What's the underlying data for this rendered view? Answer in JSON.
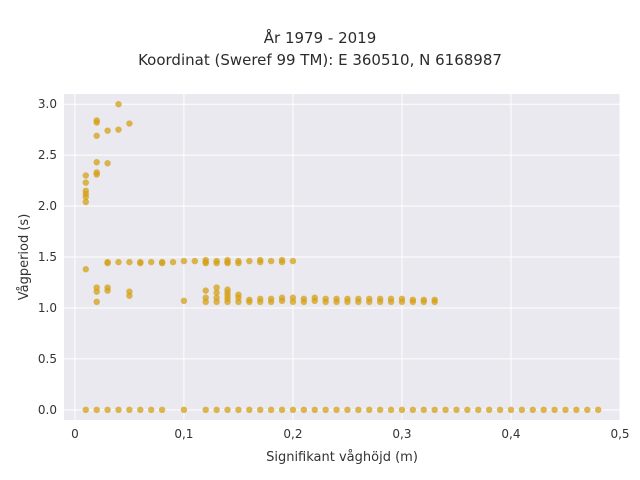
{
  "chart_data": {
    "type": "scatter",
    "title": "År 1979 - 2019",
    "subtitle": "Koordinat (Sweref 99 TM): E 360510, N 6168987",
    "xlabel": "Signifikant våghöjd (m)",
    "ylabel": "Vågperiod (s)",
    "xlim": [
      -0.01,
      0.5
    ],
    "ylim": [
      -0.1,
      3.1
    ],
    "x_ticks": [
      "0",
      "0,1",
      "0,2",
      "0,3",
      "0,4",
      "0,5"
    ],
    "y_ticks": [
      "0.0",
      "0.5",
      "1.0",
      "1.5",
      "2.0",
      "2.5",
      "3.0"
    ],
    "grid": true,
    "colors": {
      "marker": "#D4A017",
      "plot_bg": "#E9E9EF",
      "grid": "#ffffff"
    },
    "series": [
      {
        "points": [
          [
            0.01,
            2.3
          ],
          [
            0.01,
            2.23
          ],
          [
            0.01,
            2.15
          ],
          [
            0.01,
            2.12
          ],
          [
            0.01,
            2.09
          ],
          [
            0.01,
            2.04
          ],
          [
            0.01,
            1.38
          ],
          [
            0.02,
            2.84
          ],
          [
            0.02,
            2.82
          ],
          [
            0.02,
            2.69
          ],
          [
            0.02,
            2.43
          ],
          [
            0.02,
            2.33
          ],
          [
            0.02,
            2.31
          ],
          [
            0.02,
            1.2
          ],
          [
            0.02,
            1.16
          ],
          [
            0.02,
            1.06
          ],
          [
            0.03,
            2.74
          ],
          [
            0.03,
            2.42
          ],
          [
            0.03,
            1.45
          ],
          [
            0.03,
            1.44
          ],
          [
            0.03,
            1.2
          ],
          [
            0.03,
            1.17
          ],
          [
            0.04,
            3.0
          ],
          [
            0.04,
            2.75
          ],
          [
            0.04,
            1.45
          ],
          [
            0.05,
            2.81
          ],
          [
            0.05,
            1.45
          ],
          [
            0.05,
            1.16
          ],
          [
            0.05,
            1.12
          ],
          [
            0.06,
            1.45
          ],
          [
            0.06,
            1.44
          ],
          [
            0.07,
            1.45
          ],
          [
            0.08,
            1.45
          ],
          [
            0.08,
            1.44
          ],
          [
            0.09,
            1.45
          ],
          [
            0.1,
            1.46
          ],
          [
            0.1,
            1.07
          ],
          [
            0.11,
            1.46
          ],
          [
            0.12,
            1.47
          ],
          [
            0.12,
            1.45
          ],
          [
            0.12,
            1.44
          ],
          [
            0.12,
            1.17
          ],
          [
            0.12,
            1.1
          ],
          [
            0.12,
            1.06
          ],
          [
            0.13,
            1.46
          ],
          [
            0.13,
            1.44
          ],
          [
            0.13,
            1.2
          ],
          [
            0.13,
            1.15
          ],
          [
            0.13,
            1.1
          ],
          [
            0.13,
            1.06
          ],
          [
            0.14,
            1.47
          ],
          [
            0.14,
            1.45
          ],
          [
            0.14,
            1.44
          ],
          [
            0.14,
            1.18
          ],
          [
            0.14,
            1.15
          ],
          [
            0.14,
            1.12
          ],
          [
            0.14,
            1.09
          ],
          [
            0.14,
            1.06
          ],
          [
            0.15,
            1.46
          ],
          [
            0.15,
            1.44
          ],
          [
            0.15,
            1.13
          ],
          [
            0.15,
            1.1
          ],
          [
            0.15,
            1.06
          ],
          [
            0.16,
            1.46
          ],
          [
            0.16,
            1.08
          ],
          [
            0.16,
            1.06
          ],
          [
            0.17,
            1.47
          ],
          [
            0.17,
            1.45
          ],
          [
            0.17,
            1.09
          ],
          [
            0.17,
            1.06
          ],
          [
            0.18,
            1.46
          ],
          [
            0.18,
            1.09
          ],
          [
            0.18,
            1.06
          ],
          [
            0.19,
            1.47
          ],
          [
            0.19,
            1.45
          ],
          [
            0.19,
            1.1
          ],
          [
            0.19,
            1.07
          ],
          [
            0.2,
            1.46
          ],
          [
            0.2,
            1.1
          ],
          [
            0.2,
            1.06
          ],
          [
            0.21,
            1.09
          ],
          [
            0.21,
            1.06
          ],
          [
            0.22,
            1.1
          ],
          [
            0.22,
            1.07
          ],
          [
            0.23,
            1.09
          ],
          [
            0.23,
            1.06
          ],
          [
            0.24,
            1.09
          ],
          [
            0.24,
            1.06
          ],
          [
            0.25,
            1.09
          ],
          [
            0.25,
            1.06
          ],
          [
            0.26,
            1.09
          ],
          [
            0.26,
            1.06
          ],
          [
            0.27,
            1.09
          ],
          [
            0.27,
            1.06
          ],
          [
            0.28,
            1.09
          ],
          [
            0.28,
            1.06
          ],
          [
            0.29,
            1.09
          ],
          [
            0.29,
            1.06
          ],
          [
            0.3,
            1.09
          ],
          [
            0.3,
            1.06
          ],
          [
            0.31,
            1.08
          ],
          [
            0.31,
            1.06
          ],
          [
            0.32,
            1.08
          ],
          [
            0.32,
            1.06
          ],
          [
            0.33,
            1.08
          ],
          [
            0.33,
            1.06
          ],
          [
            0.01,
            0.0
          ],
          [
            0.02,
            0.0
          ],
          [
            0.03,
            0.0
          ],
          [
            0.04,
            0.0
          ],
          [
            0.05,
            0.0
          ],
          [
            0.06,
            0.0
          ],
          [
            0.07,
            0.0
          ],
          [
            0.08,
            0.0
          ],
          [
            0.1,
            0.0
          ],
          [
            0.12,
            0.0
          ],
          [
            0.13,
            0.0
          ],
          [
            0.14,
            0.0
          ],
          [
            0.15,
            0.0
          ],
          [
            0.16,
            0.0
          ],
          [
            0.17,
            0.0
          ],
          [
            0.18,
            0.0
          ],
          [
            0.19,
            0.0
          ],
          [
            0.2,
            0.0
          ],
          [
            0.21,
            0.0
          ],
          [
            0.22,
            0.0
          ],
          [
            0.23,
            0.0
          ],
          [
            0.24,
            0.0
          ],
          [
            0.25,
            0.0
          ],
          [
            0.26,
            0.0
          ],
          [
            0.27,
            0.0
          ],
          [
            0.28,
            0.0
          ],
          [
            0.29,
            0.0
          ],
          [
            0.3,
            0.0
          ],
          [
            0.31,
            0.0
          ],
          [
            0.32,
            0.0
          ],
          [
            0.33,
            0.0
          ],
          [
            0.34,
            0.0
          ],
          [
            0.35,
            0.0
          ],
          [
            0.36,
            0.0
          ],
          [
            0.37,
            0.0
          ],
          [
            0.38,
            0.0
          ],
          [
            0.39,
            0.0
          ],
          [
            0.4,
            0.0
          ],
          [
            0.41,
            0.0
          ],
          [
            0.42,
            0.0
          ],
          [
            0.43,
            0.0
          ],
          [
            0.44,
            0.0
          ],
          [
            0.45,
            0.0
          ],
          [
            0.46,
            0.0
          ],
          [
            0.47,
            0.0
          ],
          [
            0.48,
            0.0
          ]
        ]
      }
    ]
  }
}
